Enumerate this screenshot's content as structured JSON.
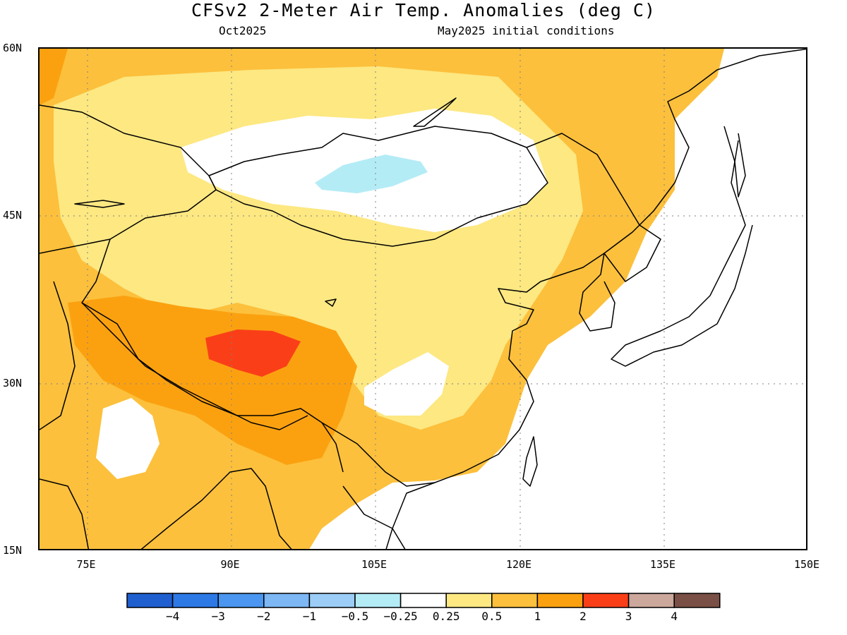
{
  "title": "CFSv2 2-Meter Air Temp. Anomalies (deg C)",
  "subtitle_left": "Oct2025",
  "subtitle_right": "May2025 initial conditions",
  "map": {
    "lon_range": [
      70,
      150
    ],
    "lat_range": [
      15,
      60
    ],
    "lat_labels": [
      "60N",
      "45N",
      "30N",
      "15N"
    ],
    "lat_values": [
      60,
      45,
      30,
      15
    ],
    "lon_labels": [
      "75E",
      "90E",
      "105E",
      "120E",
      "135E",
      "150E"
    ],
    "lon_values": [
      75,
      90,
      105,
      120,
      135,
      150
    ],
    "ocean_color": "#ffffff",
    "coastline_color": "#000000"
  },
  "legend": {
    "colors": [
      "#1f5fcf",
      "#2d7ae6",
      "#4a96f0",
      "#7db7f4",
      "#9ccdf6",
      "#b4ecf6",
      "#ffffff",
      "#fde882",
      "#fcc03c",
      "#fba110",
      "#fa3f18",
      "#cba79c",
      "#7a4f45"
    ],
    "labels": [
      "−4",
      "−3",
      "−2",
      "−1",
      "−0.5",
      "−0.25",
      "0.25",
      "0.5",
      "1",
      "2",
      "3",
      "4"
    ]
  }
}
